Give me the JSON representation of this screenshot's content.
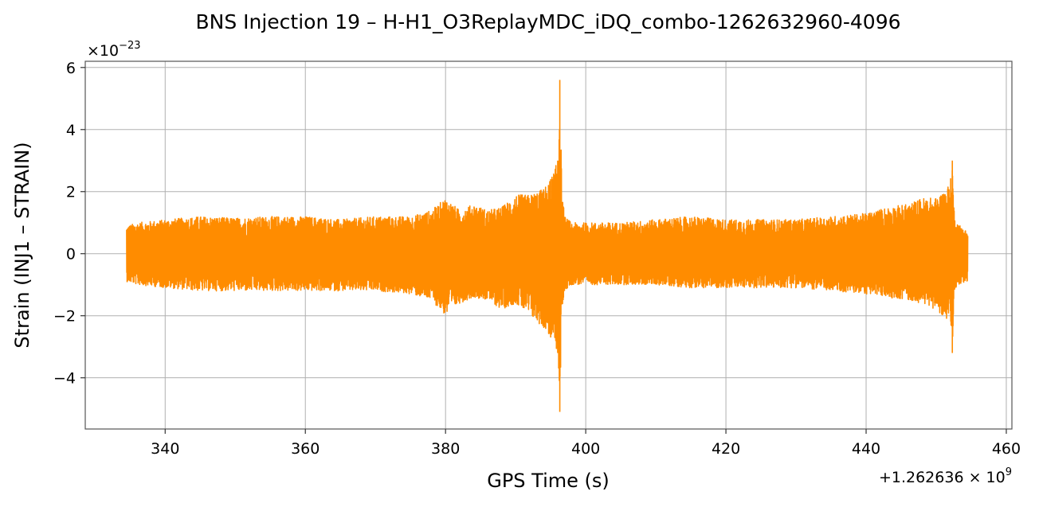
{
  "chart_data": {
    "type": "line",
    "title": "BNS Injection 19 – H-H1_O3ReplayMDC_iDQ_combo-1262632960-4096",
    "xlabel": "GPS Time (s)",
    "ylabel": "Strain (INJ1 – STRAIN)",
    "x_offset_label": "+1.262636 × 10",
    "x_offset_exponent": "9",
    "y_scale_label": "×10",
    "y_scale_exponent": "−23",
    "xlim": [
      328.6,
      460.8
    ],
    "ylim": [
      -5.65,
      6.2
    ],
    "x_ticks": [
      340,
      360,
      380,
      400,
      420,
      440,
      460
    ],
    "x_tick_labels": [
      "340",
      "360",
      "380",
      "400",
      "420",
      "440",
      "460"
    ],
    "y_ticks": [
      -4,
      -2,
      0,
      2,
      4,
      6
    ],
    "y_tick_labels": [
      "−4",
      "−2",
      "0",
      "2",
      "4",
      "6"
    ],
    "grid": true,
    "series": [
      {
        "color": "#ff8c00",
        "envelope": {
          "x": [
            334.5,
            336,
            340,
            345,
            350,
            355,
            360,
            365,
            370,
            375,
            378,
            380,
            382,
            384,
            386,
            388,
            390,
            392,
            394,
            395,
            396,
            396.3,
            396.6,
            397,
            398,
            400,
            405,
            410,
            415,
            420,
            425,
            430,
            435,
            440,
            443,
            446,
            448,
            450,
            451,
            452,
            452.3,
            452.6,
            453,
            454.5
          ],
          "upper": [
            0.9,
            1.0,
            1.1,
            1.2,
            1.15,
            1.2,
            1.2,
            1.1,
            1.2,
            1.2,
            1.4,
            1.8,
            1.4,
            1.6,
            1.4,
            1.5,
            1.9,
            1.9,
            2.1,
            2.4,
            3.0,
            5.6,
            2.0,
            1.2,
            1.0,
            1.0,
            1.0,
            1.1,
            1.2,
            1.1,
            1.1,
            1.1,
            1.2,
            1.3,
            1.5,
            1.6,
            1.8,
            1.8,
            2.0,
            2.3,
            3.0,
            1.2,
            1.0,
            0.7
          ],
          "lower": [
            -0.9,
            -1.0,
            -1.1,
            -1.2,
            -1.2,
            -1.2,
            -1.2,
            -1.2,
            -1.2,
            -1.3,
            -1.5,
            -2.0,
            -1.6,
            -1.4,
            -1.5,
            -1.8,
            -1.6,
            -2.0,
            -2.4,
            -2.7,
            -3.2,
            -5.1,
            -1.8,
            -1.2,
            -1.0,
            -1.0,
            -1.0,
            -1.0,
            -1.1,
            -1.1,
            -1.1,
            -1.1,
            -1.2,
            -1.3,
            -1.4,
            -1.5,
            -1.6,
            -1.8,
            -2.0,
            -2.3,
            -3.2,
            -1.2,
            -1.0,
            -0.9
          ]
        }
      }
    ]
  }
}
